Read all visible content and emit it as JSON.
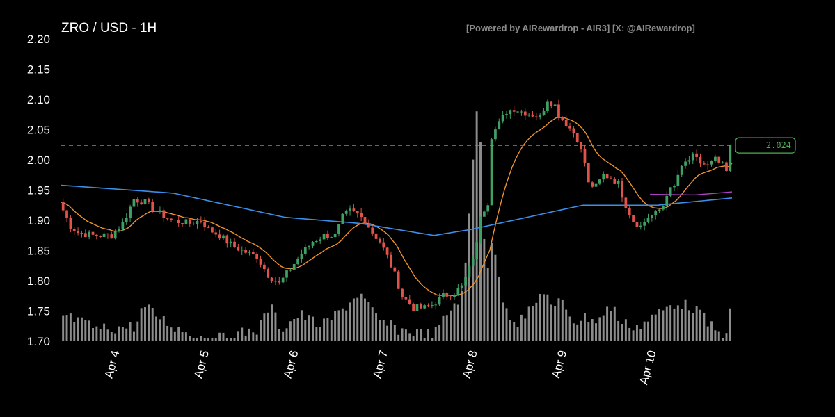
{
  "chart_data": {
    "type": "candlestick",
    "title": "ZRO / USD - 1H",
    "credit": "[Powered by AIRewardrop - AIR3] [X: @AIRewardrop]",
    "ylim": [
      1.7,
      2.2
    ],
    "yticks": [
      "1.70",
      "1.75",
      "1.80",
      "1.85",
      "1.90",
      "1.95",
      "2.00",
      "2.05",
      "2.10",
      "2.15",
      "2.20"
    ],
    "ytick_values": [
      1.7,
      1.75,
      1.8,
      1.85,
      1.9,
      1.95,
      2.0,
      2.05,
      2.1,
      2.15,
      2.2
    ],
    "xticks": [
      "Apr 4",
      "Apr 5",
      "Apr 6",
      "Apr 7",
      "Apr 8",
      "Apr 9",
      "Apr 10"
    ],
    "xtick_hours": [
      14.5,
      38.5,
      62.5,
      86.5,
      110.5,
      134.5,
      158.5
    ],
    "current_price": 2.024,
    "current_price_label": "2.024",
    "colors": {
      "up": "#3fa066",
      "down": "#e0534a",
      "volume": "#8c8c8c",
      "ma_fast": "#f0922e",
      "ma_slow": "#3d8ee8",
      "ma_mid": "#b043c4",
      "current_line": "#4caf50"
    },
    "anchors_close": [
      [
        0,
        1.93
      ],
      [
        3,
        1.89
      ],
      [
        5,
        1.88
      ],
      [
        9,
        1.875
      ],
      [
        14,
        1.875
      ],
      [
        17,
        1.895
      ],
      [
        20,
        1.935
      ],
      [
        23,
        1.93
      ],
      [
        26,
        1.915
      ],
      [
        30,
        1.9
      ],
      [
        35,
        1.895
      ],
      [
        38,
        1.9
      ],
      [
        40,
        1.885
      ],
      [
        43,
        1.875
      ],
      [
        46,
        1.86
      ],
      [
        49,
        1.85
      ],
      [
        53,
        1.84
      ],
      [
        56,
        1.81
      ],
      [
        59,
        1.795
      ],
      [
        62,
        1.82
      ],
      [
        65,
        1.845
      ],
      [
        68,
        1.865
      ],
      [
        71,
        1.875
      ],
      [
        74,
        1.875
      ],
      [
        76,
        1.905
      ],
      [
        78,
        1.915
      ],
      [
        80,
        1.91
      ],
      [
        82,
        1.9
      ],
      [
        84,
        1.88
      ],
      [
        86,
        1.865
      ],
      [
        88,
        1.84
      ],
      [
        90,
        1.81
      ],
      [
        92,
        1.775
      ],
      [
        95,
        1.755
      ],
      [
        98,
        1.755
      ],
      [
        100,
        1.76
      ],
      [
        103,
        1.775
      ],
      [
        106,
        1.78
      ],
      [
        108,
        1.79
      ],
      [
        110,
        1.82
      ],
      [
        112,
        1.86
      ],
      [
        113,
        1.91
      ],
      [
        115,
        1.93
      ],
      [
        116,
        2.04
      ],
      [
        118,
        2.06
      ],
      [
        120,
        2.08
      ],
      [
        122,
        2.085
      ],
      [
        124,
        2.08
      ],
      [
        127,
        2.075
      ],
      [
        129,
        2.07
      ],
      [
        131,
        2.1
      ],
      [
        133,
        2.09
      ],
      [
        134,
        2.075
      ],
      [
        136,
        2.06
      ],
      [
        138,
        2.045
      ],
      [
        139,
        2.035
      ],
      [
        140,
        2.015
      ],
      [
        141,
        1.995
      ],
      [
        142,
        1.96
      ],
      [
        144,
        1.955
      ],
      [
        146,
        1.975
      ],
      [
        148,
        1.97
      ],
      [
        150,
        1.96
      ],
      [
        152,
        1.925
      ],
      [
        154,
        1.9
      ],
      [
        156,
        1.89
      ],
      [
        158,
        1.905
      ],
      [
        160,
        1.91
      ],
      [
        162,
        1.925
      ],
      [
        163,
        1.945
      ],
      [
        165,
        1.955
      ],
      [
        166,
        1.975
      ],
      [
        168,
        1.995
      ],
      [
        170,
        2.005
      ],
      [
        172,
        1.995
      ],
      [
        174,
        1.99
      ],
      [
        176,
        2.0
      ],
      [
        178,
        1.99
      ],
      [
        179,
        1.98
      ],
      [
        180,
        2.024
      ]
    ],
    "volume_anchors": [
      [
        0,
        1.754
      ],
      [
        10,
        1.73
      ],
      [
        20,
        1.735
      ],
      [
        22,
        1.768
      ],
      [
        30,
        1.735
      ],
      [
        40,
        1.71
      ],
      [
        46,
        1.72
      ],
      [
        53,
        1.73
      ],
      [
        56,
        1.77
      ],
      [
        59,
        1.73
      ],
      [
        64,
        1.755
      ],
      [
        70,
        1.735
      ],
      [
        75,
        1.76
      ],
      [
        80,
        1.79
      ],
      [
        85,
        1.745
      ],
      [
        90,
        1.73
      ],
      [
        95,
        1.725
      ],
      [
        100,
        1.72
      ],
      [
        104,
        1.76
      ],
      [
        108,
        1.79
      ],
      [
        112,
        2.14
      ],
      [
        113,
        1.95
      ],
      [
        114,
        1.82
      ],
      [
        116,
        1.88
      ],
      [
        118,
        1.79
      ],
      [
        120,
        1.76
      ],
      [
        122,
        1.74
      ],
      [
        126,
        1.76
      ],
      [
        128,
        1.78
      ],
      [
        130,
        1.8
      ],
      [
        132,
        1.755
      ],
      [
        134,
        1.78
      ],
      [
        136,
        1.76
      ],
      [
        138,
        1.74
      ],
      [
        140,
        1.75
      ],
      [
        144,
        1.745
      ],
      [
        148,
        1.77
      ],
      [
        150,
        1.74
      ],
      [
        155,
        1.735
      ],
      [
        160,
        1.755
      ],
      [
        165,
        1.775
      ],
      [
        170,
        1.765
      ],
      [
        175,
        1.73
      ],
      [
        178,
        1.715
      ],
      [
        180,
        1.77
      ]
    ],
    "ma_mid_points": [
      [
        158,
        1.943
      ],
      [
        170,
        1.942
      ],
      [
        180,
        1.947
      ]
    ]
  }
}
